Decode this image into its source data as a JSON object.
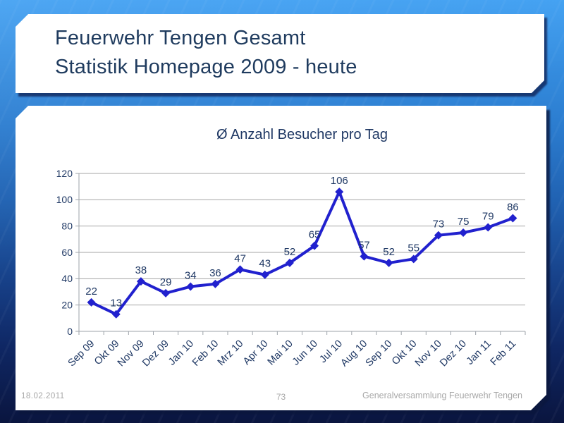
{
  "slide": {
    "title_line1": "Feuerwehr Tengen Gesamt",
    "title_line2": "Statistik Homepage 2009 - heute",
    "footer": {
      "date": "18.02.2011",
      "page_number": "73",
      "right": "Generalversammlung Feuerwehr Tengen"
    }
  },
  "chart_data": {
    "type": "line",
    "title": "Ø Anzahl Besucher pro Tag",
    "categories": [
      "Sep 09",
      "Okt 09",
      "Nov 09",
      "Dez 09",
      "Jan 10",
      "Feb 10",
      "Mrz 10",
      "Apr 10",
      "Mai 10",
      "Jun 10",
      "Jul 10",
      "Aug 10",
      "Sep 10",
      "Okt 10",
      "Nov 10",
      "Dez 10",
      "Jan 11",
      "Feb 11"
    ],
    "values": [
      22,
      13,
      38,
      29,
      34,
      36,
      47,
      43,
      52,
      65,
      106,
      57,
      52,
      55,
      73,
      75,
      79,
      86
    ],
    "xlabel": "",
    "ylabel": "",
    "ylim": [
      0,
      120
    ],
    "yticks": [
      0,
      20,
      40,
      60,
      80,
      100,
      120
    ],
    "grid": true,
    "legend": "none",
    "marker": "diamond",
    "line_color": "#2121CE",
    "text_color": "#1F3864",
    "grid_color": "#A6A6A6",
    "axis_color": "#9DA3AA",
    "data_labels": true
  }
}
